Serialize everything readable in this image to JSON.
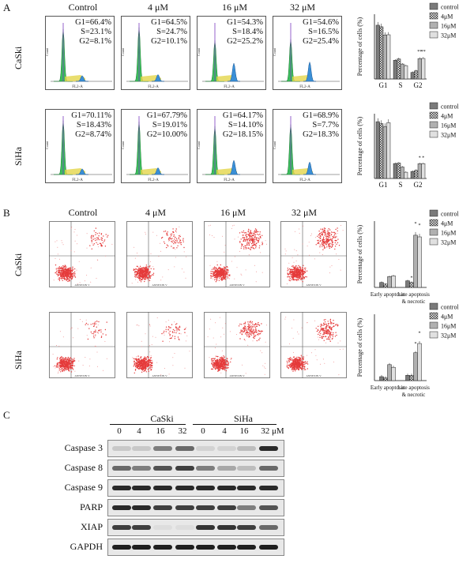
{
  "panels": {
    "a": "A",
    "b": "B",
    "c": "C"
  },
  "columns": [
    "Control",
    "4 μM",
    "16 μM",
    "32 μM"
  ],
  "rows": [
    "CaSki",
    "SiHa"
  ],
  "cell_cycle": {
    "caski": [
      [
        "G1=66.4%",
        "S=23.1%",
        "G2=8.1%"
      ],
      [
        "G1=64.5%",
        "S=24.7%",
        "G2=10.1%"
      ],
      [
        "G1=54.3%",
        "S=18.4%",
        "G2=25.2%"
      ],
      [
        "G1=54.6%",
        "S=16.5%",
        "G2=25.4%"
      ]
    ],
    "siha": [
      [
        "G1=70.11%",
        "S=18.43%",
        "G2=8.74%"
      ],
      [
        "G1=67.79%",
        "S=19.01%",
        "G2=10.00%"
      ],
      [
        "G1=64.17%",
        "S=14.10%",
        "G2=18.15%"
      ],
      [
        "G1=68.9%",
        "S=7.7%",
        "G2=18.3%"
      ]
    ],
    "hist_xlabel": "FL2-A",
    "hist_ylabel": "Count"
  },
  "chart_data": [
    {
      "type": "bar",
      "panel": "A-CaSki",
      "ylabel": "Percentage of cells (%)",
      "categories": [
        "G1",
        "S",
        "G2"
      ],
      "ylim": [
        0,
        80
      ],
      "series": [
        {
          "name": "control",
          "values": [
            66.4,
            23.1,
            8.1
          ]
        },
        {
          "name": "4μM",
          "values": [
            64.5,
            24.7,
            10.1
          ]
        },
        {
          "name": "16μM",
          "values": [
            54.3,
            18.4,
            25.2
          ]
        },
        {
          "name": "32μM",
          "values": [
            54.6,
            16.5,
            25.4
          ]
        }
      ],
      "annotations": [
        "**",
        "**"
      ]
    },
    {
      "type": "bar",
      "panel": "A-SiHa",
      "ylabel": "Percentage of cells (%)",
      "categories": [
        "G1",
        "S",
        "G2"
      ],
      "ylim": [
        0,
        80
      ],
      "series": [
        {
          "name": "control",
          "values": [
            70.1,
            18.4,
            8.7
          ]
        },
        {
          "name": "4μM",
          "values": [
            67.8,
            19.0,
            10.0
          ]
        },
        {
          "name": "16μM",
          "values": [
            64.2,
            14.1,
            18.2
          ]
        },
        {
          "name": "32μM",
          "values": [
            68.9,
            7.7,
            18.3
          ]
        }
      ],
      "annotations": [
        "*",
        "*"
      ]
    },
    {
      "type": "bar",
      "panel": "B-CaSki",
      "ylabel": "Percentage of cells (%)",
      "categories": [
        "Early apoptosis",
        "Late apoptosis & necrotic"
      ],
      "ylim": [
        0,
        80
      ],
      "series": [
        {
          "name": "control",
          "values": [
            6,
            8
          ]
        },
        {
          "name": "4μM",
          "values": [
            4,
            6
          ]
        },
        {
          "name": "16μM",
          "values": [
            13,
            63
          ]
        },
        {
          "name": "32μM",
          "values": [
            14,
            61
          ]
        }
      ],
      "annotations": [
        "*",
        "*",
        "*"
      ]
    },
    {
      "type": "bar",
      "panel": "B-SiHa",
      "ylabel": "Percentage of cells (%)",
      "categories": [
        "Early apoptosis",
        "Late apoptosis & necrotic"
      ],
      "ylim": [
        0,
        50
      ],
      "series": [
        {
          "name": "control",
          "values": [
            3,
            4
          ]
        },
        {
          "name": "4μM",
          "values": [
            2,
            4
          ]
        },
        {
          "name": "16μM",
          "values": [
            12,
            21
          ]
        },
        {
          "name": "32μM",
          "values": [
            10,
            28
          ]
        }
      ],
      "annotations": [
        "*",
        "*"
      ]
    }
  ],
  "legend": [
    "control",
    "4μM",
    "16μM",
    "32μM"
  ],
  "legend_colors": [
    "#7a7a7a",
    "#cfcfcf",
    "#b0b0b0",
    "#e0e0e0"
  ],
  "annexin_label": "ANNEXIN V",
  "western": {
    "groups": [
      "CaSki",
      "SiHa"
    ],
    "lanes": [
      "0",
      "4",
      "16",
      "32",
      "0",
      "4",
      "16",
      "32 μM"
    ],
    "proteins": [
      "Caspase 3",
      "Caspase 8",
      "Caspase 9",
      "PARP",
      "XIAP",
      "GAPDH"
    ]
  }
}
